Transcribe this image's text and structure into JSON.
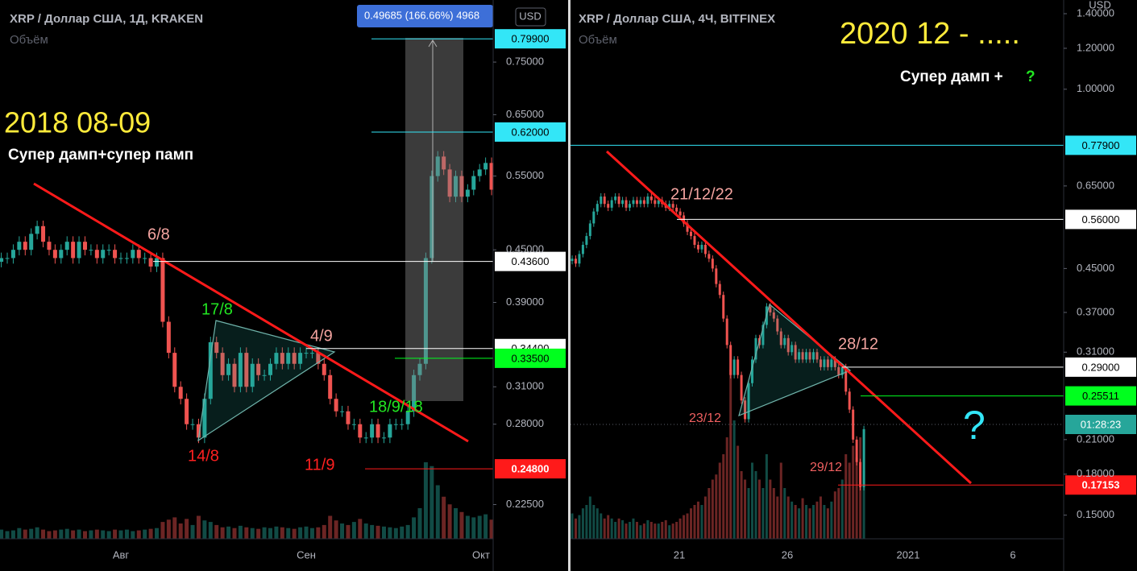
{
  "panels": [
    {
      "header": "XRP / Доллар США, 1Д, KRAKEN",
      "volume_label": "Объём",
      "currency": "USD",
      "tooltip": "0.49685 (166.66%) 4968",
      "log_scale": true,
      "ylim": [
        0.205,
        0.888
      ],
      "yticks": [
        {
          "value": 0.75,
          "label": "0.75000"
        },
        {
          "value": 0.65,
          "label": "0.65000"
        },
        {
          "value": 0.55,
          "label": "0.55000"
        },
        {
          "value": 0.45,
          "label": "0.45000"
        },
        {
          "value": 0.39,
          "label": "0.39000"
        },
        {
          "value": 0.31,
          "label": "0.31000"
        },
        {
          "value": 0.28,
          "label": "0.28000"
        },
        {
          "value": 0.225,
          "label": "0.22500"
        }
      ],
      "x_labels": [
        "Авг",
        "Сен",
        "Окт"
      ],
      "price_tags": [
        {
          "value": 0.799,
          "label": "0.79900",
          "color": "#33e6f7",
          "text_color": "#000"
        },
        {
          "value": 0.62,
          "label": "0.62000",
          "color": "#33e6f7",
          "text_color": "#000"
        },
        {
          "value": 0.436,
          "label": "0.43600",
          "color": "#ffffff",
          "text_color": "#000"
        },
        {
          "value": 0.344,
          "label": "0.34400",
          "color": "#ffffff",
          "text_color": "#000"
        },
        {
          "value": 0.335,
          "label": "0.33500",
          "color": "#00ff1e",
          "text_color": "#000"
        },
        {
          "value": 0.248,
          "label": "0.24800",
          "color": "#ff1a1a",
          "text_color": "#fff"
        }
      ],
      "annotations": [
        "2018 08-09",
        "Супер дамп+супер памп",
        "6/8",
        "17/8",
        "4/9",
        "14/8",
        "11/9",
        "18/9/18"
      ],
      "up_color": "#26a69a",
      "down_color": "#ef5350",
      "closes": [
        0.44,
        0.44,
        0.45,
        0.46,
        0.45,
        0.47,
        0.48,
        0.46,
        0.45,
        0.44,
        0.45,
        0.46,
        0.44,
        0.46,
        0.45,
        0.45,
        0.44,
        0.45,
        0.45,
        0.44,
        0.44,
        0.44,
        0.45,
        0.44,
        0.44,
        0.43,
        0.44,
        0.37,
        0.34,
        0.31,
        0.3,
        0.28,
        0.28,
        0.27,
        0.3,
        0.35,
        0.34,
        0.32,
        0.33,
        0.31,
        0.34,
        0.31,
        0.33,
        0.32,
        0.32,
        0.33,
        0.34,
        0.33,
        0.34,
        0.33,
        0.34,
        0.34,
        0.34,
        0.33,
        0.32,
        0.3,
        0.29,
        0.29,
        0.28,
        0.28,
        0.27,
        0.27,
        0.28,
        0.27,
        0.27,
        0.28,
        0.28,
        0.28,
        0.29,
        0.32,
        0.33,
        0.44,
        0.55,
        0.58,
        0.56,
        0.52,
        0.55,
        0.52,
        0.53,
        0.55,
        0.56,
        0.57,
        0.53
      ],
      "volumes": [
        12,
        10,
        11,
        14,
        12,
        13,
        15,
        12,
        10,
        11,
        12,
        13,
        11,
        12,
        10,
        11,
        12,
        11,
        10,
        12,
        11,
        12,
        10,
        11,
        12,
        13,
        14,
        22,
        25,
        28,
        20,
        26,
        18,
        30,
        24,
        22,
        18,
        15,
        16,
        14,
        17,
        15,
        14,
        13,
        15,
        14,
        16,
        15,
        14,
        13,
        15,
        16,
        14,
        15,
        18,
        30,
        24,
        20,
        18,
        22,
        26,
        20,
        18,
        17,
        16,
        15,
        14,
        16,
        18,
        28,
        40,
        100,
        95,
        70,
        55,
        45,
        40,
        35,
        30,
        28,
        30,
        32,
        25
      ]
    },
    {
      "header": "XRP / Доллар США, 4Ч, BITFINEX",
      "volume_label": "Объём",
      "currency": "USD",
      "countdown": "01:28:23",
      "log_scale": true,
      "ylim": [
        0.135,
        1.488
      ],
      "yticks": [
        {
          "value": 1.4,
          "label": "1.40000"
        },
        {
          "value": 1.2,
          "label": "1.20000"
        },
        {
          "value": 1.0,
          "label": "1.00000"
        },
        {
          "value": 0.65,
          "label": "0.65000"
        },
        {
          "value": 0.45,
          "label": "0.45000"
        },
        {
          "value": 0.37,
          "label": "0.37000"
        },
        {
          "value": 0.31,
          "label": "0.31000"
        },
        {
          "value": 0.21,
          "label": "0.21000"
        },
        {
          "value": 0.18,
          "label": "0.18000"
        },
        {
          "value": 0.15,
          "label": "0.15000"
        }
      ],
      "x_labels": [
        "21",
        "26",
        "2021",
        "6"
      ],
      "price_tags": [
        {
          "value": 0.779,
          "label": "0.77900",
          "color": "#33e6f7",
          "text_color": "#000"
        },
        {
          "value": 0.56,
          "label": "0.56000",
          "color": "#ffffff",
          "text_color": "#000"
        },
        {
          "value": 0.29,
          "label": "0.29000",
          "color": "#ffffff",
          "text_color": "#000"
        },
        {
          "value": 0.25511,
          "label": "0.25511",
          "color": "#00ff1e",
          "text_color": "#000"
        },
        {
          "value": 0.17153,
          "label": "0.17153",
          "color": "#ff1a1a",
          "text_color": "#fff"
        }
      ],
      "annotations": [
        "2020 12 - .....",
        "Супер дамп + ",
        "?",
        "21/12/22",
        "28/12",
        "23/12",
        "29/12",
        "?"
      ],
      "up_color": "#26a69a",
      "down_color": "#ef5350",
      "closes": [
        0.47,
        0.46,
        0.48,
        0.5,
        0.52,
        0.55,
        0.58,
        0.6,
        0.62,
        0.6,
        0.59,
        0.61,
        0.62,
        0.6,
        0.61,
        0.59,
        0.6,
        0.61,
        0.6,
        0.61,
        0.6,
        0.62,
        0.61,
        0.6,
        0.61,
        0.6,
        0.59,
        0.6,
        0.59,
        0.58,
        0.57,
        0.55,
        0.53,
        0.52,
        0.5,
        0.49,
        0.5,
        0.48,
        0.47,
        0.45,
        0.42,
        0.4,
        0.36,
        0.32,
        0.28,
        0.3,
        0.28,
        0.25,
        0.23,
        0.27,
        0.3,
        0.33,
        0.32,
        0.35,
        0.38,
        0.37,
        0.36,
        0.34,
        0.32,
        0.33,
        0.31,
        0.32,
        0.3,
        0.31,
        0.3,
        0.31,
        0.3,
        0.31,
        0.3,
        0.29,
        0.3,
        0.29,
        0.3,
        0.29,
        0.28,
        0.29,
        0.26,
        0.24,
        0.21,
        0.19,
        0.17,
        0.22
      ],
      "volumes": [
        15,
        12,
        14,
        18,
        20,
        25,
        20,
        18,
        15,
        12,
        14,
        12,
        10,
        12,
        11,
        9,
        10,
        12,
        10,
        8,
        9,
        11,
        10,
        9,
        9,
        10,
        11,
        8,
        9,
        10,
        12,
        14,
        15,
        18,
        20,
        22,
        20,
        25,
        30,
        35,
        38,
        45,
        50,
        60,
        100,
        70,
        55,
        40,
        35,
        30,
        45,
        40,
        35,
        30,
        50,
        35,
        30,
        25,
        45,
        30,
        25,
        22,
        20,
        18,
        24,
        20,
        18,
        20,
        22,
        25,
        20,
        18,
        22,
        28,
        30,
        35,
        50,
        45,
        55,
        48,
        60,
        40
      ]
    }
  ]
}
